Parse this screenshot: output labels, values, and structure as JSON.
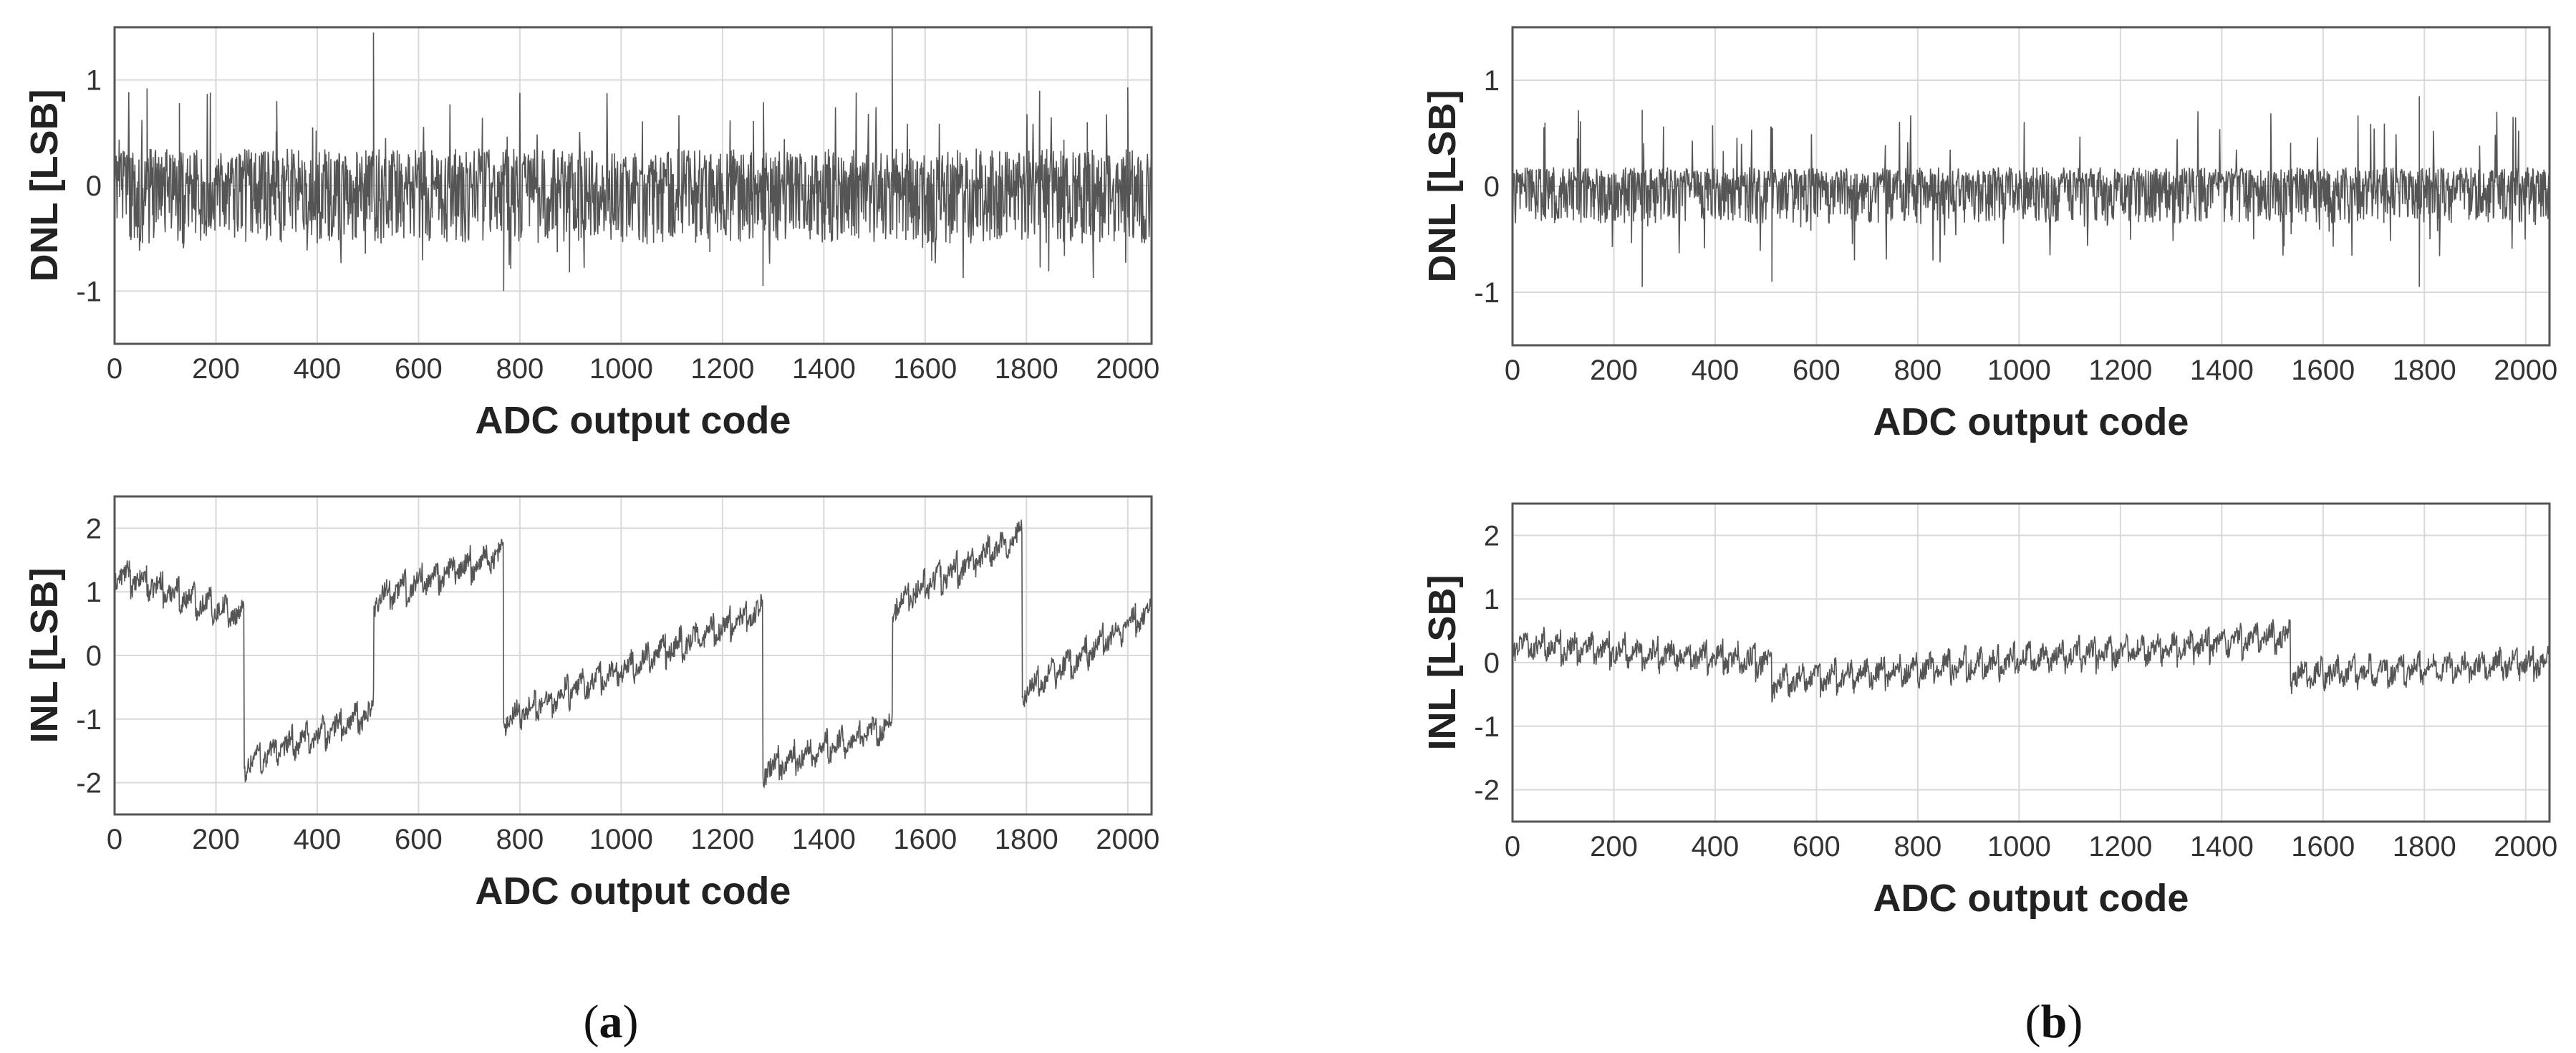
{
  "chart_data": [
    {
      "type": "line",
      "panel": "a",
      "signal": "DNL",
      "xlabel": "ADC output code",
      "ylabel": "DNL [LSB]",
      "xlim": [
        0,
        2047
      ],
      "ylim": [
        -1.5,
        1.5
      ],
      "xticks": [
        0,
        200,
        400,
        600,
        800,
        1000,
        1200,
        1400,
        1600,
        1800,
        2000
      ],
      "yticks": [
        -1,
        0,
        1
      ],
      "grid": true,
      "envelope": {
        "typical_high": 0.35,
        "typical_low": -0.55,
        "spikes": [
          [
            64,
            0.92
          ],
          [
            128,
            0.78
          ],
          [
            320,
            0.8
          ],
          [
            511,
            1.45
          ],
          [
            1535,
            1.5
          ],
          [
            1280,
            -0.95
          ],
          [
            768,
            -1.0
          ],
          [
            1920,
            0.6
          ],
          [
            2000,
            0.93
          ]
        ]
      }
    },
    {
      "type": "line",
      "panel": "a",
      "signal": "INL",
      "xlabel": "ADC output code",
      "ylabel": "INL [LSB]",
      "xlim": [
        0,
        2047
      ],
      "ylim": [
        -2.5,
        2.5
      ],
      "xticks": [
        0,
        200,
        400,
        600,
        800,
        1000,
        1200,
        1400,
        1600,
        1800,
        2000
      ],
      "yticks": [
        -2,
        -1,
        0,
        1,
        2
      ],
      "grid": true,
      "segments": [
        {
          "x": [
            0,
            255
          ],
          "y": [
            1.3,
            0.6
          ]
        },
        {
          "x": [
            256,
            511
          ],
          "y": [
            -1.7,
            -0.9
          ]
        },
        {
          "x": [
            512,
            767
          ],
          "y": [
            0.9,
            1.6
          ]
        },
        {
          "x": [
            768,
            1279
          ],
          "y": [
            -1.0,
            0.7
          ]
        },
        {
          "x": [
            1280,
            1535
          ],
          "y": [
            -1.8,
            -1.1
          ]
        },
        {
          "x": [
            1536,
            1791
          ],
          "y": [
            0.8,
            1.9
          ]
        },
        {
          "x": [
            1792,
            2047
          ],
          "y": [
            -0.6,
            0.7
          ]
        }
      ]
    },
    {
      "type": "line",
      "panel": "b",
      "signal": "DNL",
      "xlabel": "ADC output code",
      "ylabel": "DNL [LSB]",
      "xlim": [
        0,
        2047
      ],
      "ylim": [
        -1.5,
        1.5
      ],
      "xticks": [
        0,
        200,
        400,
        600,
        800,
        1000,
        1200,
        1400,
        1600,
        1800,
        2000
      ],
      "yticks": [
        -1,
        0,
        1
      ],
      "grid": true,
      "envelope": {
        "typical_high": 0.18,
        "typical_low": -0.35,
        "spikes": [
          [
            64,
            0.6
          ],
          [
            128,
            0.45
          ],
          [
            256,
            0.72
          ],
          [
            1790,
            0.85
          ],
          [
            1980,
            0.65
          ],
          [
            1790,
            -0.95
          ],
          [
            256,
            -0.95
          ],
          [
            512,
            -0.9
          ]
        ]
      }
    },
    {
      "type": "line",
      "panel": "b",
      "signal": "INL",
      "xlabel": "ADC output code",
      "ylabel": "INL [LSB]",
      "xlim": [
        0,
        2047
      ],
      "ylim": [
        -2.5,
        2.5
      ],
      "xticks": [
        0,
        200,
        400,
        600,
        800,
        1000,
        1200,
        1400,
        1600,
        1800,
        2000
      ],
      "yticks": [
        -2,
        -1,
        0,
        1,
        2
      ],
      "grid": true,
      "segments": [
        {
          "x": [
            0,
            511
          ],
          "y": [
            0.3,
            0.0
          ]
        },
        {
          "x": [
            512,
            1535
          ],
          "y": [
            -0.3,
            0.4
          ]
        },
        {
          "x": [
            1536,
            2047
          ],
          "y": [
            -0.2,
            0.0
          ]
        }
      ]
    }
  ],
  "panel_labels": {
    "a": {
      "open": "(",
      "letter": "a",
      "close": ")"
    },
    "b": {
      "open": "(",
      "letter": "b",
      "close": ")"
    }
  },
  "colors": {
    "trace": "#555555",
    "grid": "#d9d9d9",
    "frame": "#555555"
  }
}
